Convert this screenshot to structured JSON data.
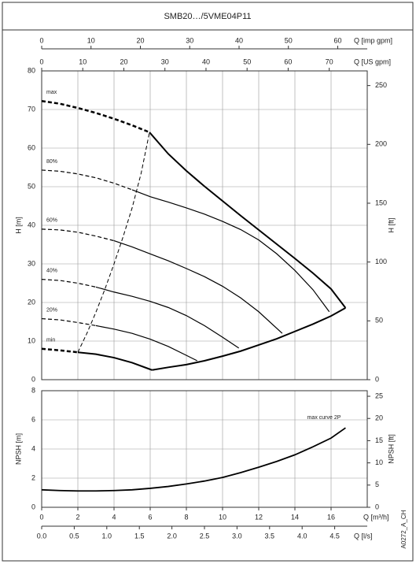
{
  "chart_data": [
    {
      "type": "line",
      "title": "SMB20…/5VME04P11",
      "x2label": "Q [imp gpm]",
      "x2lim": [
        0,
        65.98
      ],
      "x2ticks": [
        0,
        10,
        20,
        30,
        40,
        50,
        60
      ],
      "x3label": "Q [US gpm]",
      "x3lim": [
        0,
        79.25
      ],
      "x3ticks": [
        0,
        10,
        20,
        30,
        40,
        50,
        60,
        70
      ],
      "xlim": [
        0,
        18
      ],
      "ylabel": "H [m]",
      "ylim": [
        0,
        80
      ],
      "yticks": [
        0,
        10,
        20,
        30,
        40,
        50,
        60,
        70,
        80
      ],
      "y2label": "H [ft]",
      "y2lim": [
        0,
        262.47
      ],
      "y2ticks": [
        0,
        50,
        100,
        150,
        200,
        250
      ],
      "grid": true,
      "color": "#000000",
      "series": [
        {
          "label": "max",
          "style": "dashed",
          "width": 2.5,
          "x": [
            0,
            1,
            2,
            3,
            4,
            5,
            5.96
          ],
          "values": [
            72.2,
            71.5,
            70.4,
            69.1,
            67.6,
            65.9,
            64.1
          ]
        },
        {
          "style": "solid",
          "width": 2,
          "x": [
            5.96,
            7,
            8,
            9,
            10,
            11,
            12,
            13,
            14,
            15,
            16,
            16.8
          ],
          "values": [
            64.1,
            58.5,
            54.1,
            50.1,
            46.3,
            42.5,
            38.8,
            35.1,
            31.4,
            27.6,
            23.5,
            18.6
          ]
        },
        {
          "label": "min",
          "style": "dashed",
          "width": 2.5,
          "x": [
            0,
            1,
            2
          ],
          "values": [
            8,
            7.6,
            7.1
          ]
        },
        {
          "style": "solid",
          "width": 2,
          "x": [
            2,
            3,
            4,
            5,
            6.1
          ],
          "values": [
            7.1,
            6.6,
            5.7,
            4.4,
            2.5
          ]
        },
        {
          "style": "solid",
          "width": 2,
          "x": [
            6.1,
            7,
            8,
            9,
            10,
            11,
            12,
            13,
            14,
            15,
            16,
            16.8
          ],
          "values": [
            2.5,
            3.2,
            3.9,
            4.9,
            6.1,
            7.4,
            9.0,
            10.6,
            12.5,
            14.4,
            16.5,
            18.6
          ]
        },
        {
          "style": "dashed",
          "width": 1,
          "x": [
            2,
            2.5,
            3,
            3.5,
            4,
            4.5,
            5,
            5.5,
            5.96
          ],
          "values": [
            7.1,
            12,
            17.5,
            23.5,
            30,
            37,
            44.5,
            53.5,
            64.1
          ]
        },
        {
          "label": "80%",
          "style": "dashed",
          "width": 1.2,
          "x": [
            0,
            1,
            2,
            3,
            4,
            5
          ],
          "values": [
            54.3,
            54,
            53.3,
            52.3,
            50.9,
            49.2
          ]
        },
        {
          "style": "solid",
          "width": 1.2,
          "x": [
            5,
            6,
            7,
            8,
            9,
            10,
            11,
            12,
            13,
            14,
            15,
            15.9
          ],
          "values": [
            49.2,
            47.4,
            46,
            44.5,
            42.9,
            41,
            38.9,
            36.2,
            32.6,
            28.3,
            23.3,
            17.6
          ]
        },
        {
          "label": "60%",
          "style": "dashed",
          "width": 1.2,
          "x": [
            0,
            1,
            2,
            3,
            4
          ],
          "values": [
            39,
            38.8,
            38.2,
            37.2,
            36
          ]
        },
        {
          "style": "solid",
          "width": 1.2,
          "x": [
            4,
            5,
            6,
            7,
            8,
            9,
            10,
            11,
            12,
            13.3
          ],
          "values": [
            36,
            34.4,
            32.6,
            30.8,
            28.8,
            26.7,
            24.2,
            21.2,
            17.6,
            12
          ]
        },
        {
          "label": "40%",
          "style": "dashed",
          "width": 1.2,
          "x": [
            0,
            1,
            2,
            3
          ],
          "values": [
            26,
            25.7,
            25,
            24
          ]
        },
        {
          "style": "solid",
          "width": 1.2,
          "x": [
            3,
            4,
            5,
            6,
            7,
            8,
            9,
            10,
            10.9
          ],
          "values": [
            24,
            22.7,
            21.6,
            20.3,
            18.7,
            16.6,
            14,
            11,
            8.2
          ]
        },
        {
          "label": "20%",
          "style": "dashed",
          "width": 1.2,
          "x": [
            0,
            1,
            2,
            3
          ],
          "values": [
            15.8,
            15.5,
            14.8,
            14
          ]
        },
        {
          "style": "solid",
          "width": 1.2,
          "x": [
            3,
            4,
            5,
            6,
            7,
            8,
            8.6
          ],
          "values": [
            14,
            13.1,
            12,
            10.5,
            8.6,
            6.3,
            4.9
          ]
        }
      ]
    },
    {
      "type": "line",
      "xlabel": "Q [m³/h]",
      "xlim": [
        0,
        18
      ],
      "xticks": [
        0,
        2,
        4,
        6,
        8,
        10,
        12,
        14,
        16
      ],
      "x2label": "Q [l/s]",
      "x2lim": [
        0,
        5
      ],
      "x2ticks": [
        {
          "value": 0,
          "label": "0.0"
        },
        0.5,
        {
          "value": 1,
          "label": "1.0"
        },
        1.5,
        {
          "value": 2,
          "label": "2.0"
        },
        2.5,
        {
          "value": 3,
          "label": "3.0"
        },
        3.5,
        {
          "value": 4,
          "label": "4.0"
        },
        4.5
      ],
      "ylabel": "NPSH [m]",
      "ylim": [
        0,
        8
      ],
      "yticks": [
        0,
        2,
        4,
        6,
        8
      ],
      "y2label": "NPSH [ft]",
      "y2lim": [
        0,
        26.25
      ],
      "y2ticks": [
        0,
        5,
        10,
        15,
        20,
        25
      ],
      "grid": true,
      "color": "#000000",
      "series": [
        {
          "label": "max curve 2P",
          "style": "solid",
          "width": 1.8,
          "x": [
            0,
            1,
            2,
            3,
            4,
            5,
            6,
            7,
            8,
            9,
            10,
            11,
            12,
            13,
            14,
            15,
            16,
            16.8
          ],
          "values": [
            1.2,
            1.15,
            1.12,
            1.12,
            1.15,
            1.2,
            1.3,
            1.43,
            1.6,
            1.8,
            2.05,
            2.38,
            2.75,
            3.15,
            3.6,
            4.15,
            4.75,
            5.45
          ]
        }
      ]
    }
  ],
  "code": "A0272_A_CH"
}
